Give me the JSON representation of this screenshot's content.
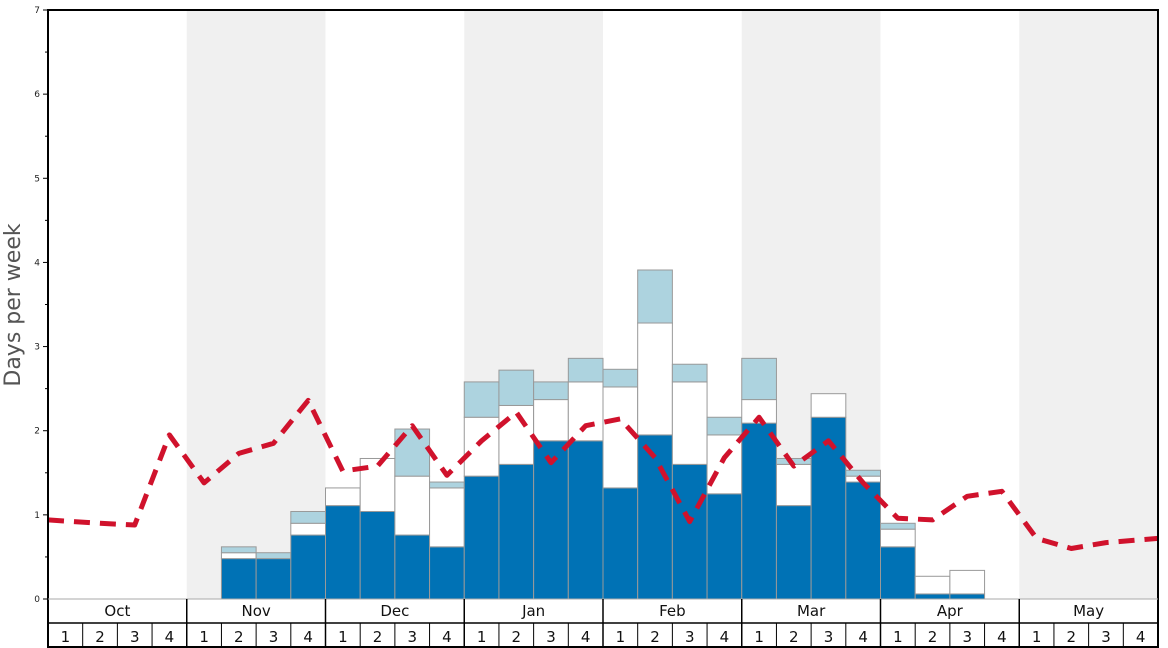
{
  "chart_data": {
    "type": "bar",
    "ylabel": "Days per week",
    "ylim": [
      0,
      7
    ],
    "yticks": [
      "0",
      "1",
      "2",
      "3",
      "4",
      "5",
      "6",
      "7"
    ],
    "months": [
      "Oct",
      "Nov",
      "Dec",
      "Jan",
      "Feb",
      "Mar",
      "Apr",
      "May"
    ],
    "week_labels": [
      "1",
      "2",
      "3",
      "4"
    ],
    "stacked": true,
    "colors": {
      "base": "#0072b5",
      "middle": "#ffffff",
      "top": "#add3df",
      "line": "#d0122c",
      "band": "#f0f0f0"
    },
    "series": [
      {
        "values": [
          0,
          0,
          0,
          0,
          0,
          0.48,
          0.48,
          0.76,
          1.11,
          1.04,
          0.76,
          0.62,
          1.46,
          1.6,
          1.88,
          1.88,
          1.32,
          1.95,
          1.6,
          1.25,
          2.09,
          1.11,
          2.16,
          1.39,
          0.62,
          0.06,
          0.06,
          0,
          0,
          0,
          0,
          0
        ]
      },
      {
        "values": [
          0,
          0,
          0,
          0,
          0,
          0.07,
          0,
          0.14,
          0.21,
          0.63,
          0.7,
          0.7,
          0.7,
          0.7,
          0.49,
          0.7,
          1.2,
          1.33,
          0.98,
          0.7,
          0.28,
          0.49,
          0.28,
          0.07,
          0.21,
          0.21,
          0.28,
          0,
          0,
          0,
          0,
          0
        ]
      },
      {
        "values": [
          0,
          0,
          0,
          0,
          0,
          0.07,
          0.07,
          0.14,
          0,
          0,
          0.56,
          0.07,
          0.42,
          0.42,
          0.21,
          0.28,
          0.21,
          0.63,
          0.21,
          0.21,
          0.49,
          0.07,
          0,
          0.07,
          0.07,
          0,
          0,
          0,
          0,
          0,
          0,
          0
        ]
      },
      {
        "values": [
          0.94,
          0.9,
          0.88,
          1.95,
          1.38,
          1.73,
          1.85,
          2.36,
          1.52,
          1.58,
          2.06,
          1.47,
          1.88,
          2.22,
          1.62,
          2.06,
          2.14,
          1.68,
          0.92,
          1.68,
          2.16,
          1.58,
          1.88,
          1.38,
          0.96,
          0.94,
          1.22,
          1.28,
          0.72,
          0.6,
          0.67,
          0.72
        ]
      }
    ]
  }
}
